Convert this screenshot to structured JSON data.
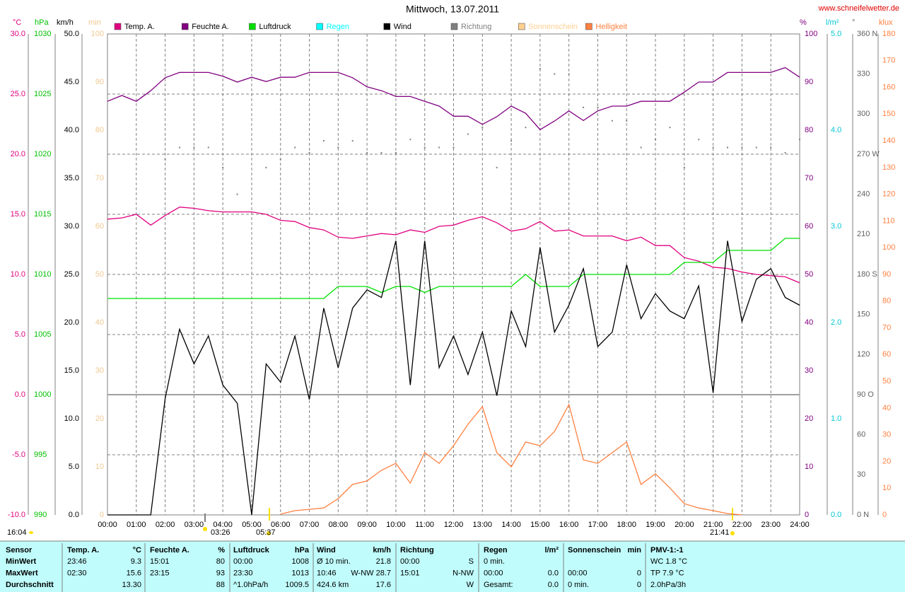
{
  "chart_data": {
    "type": "line",
    "title": "Mittwoch, 13.07.2011",
    "source": "www.schneifelwetter.de",
    "annotations": [
      "16:04",
      "03:26",
      "05:37",
      "21:41"
    ],
    "xlim": [
      0,
      24
    ],
    "xticks": [
      {
        "value": 0,
        "label": "00:00"
      },
      {
        "value": 1,
        "label": "01:00"
      },
      {
        "value": 2,
        "label": "02:00"
      },
      {
        "value": 3,
        "label": "03:00"
      },
      {
        "value": 4,
        "label": "04:00"
      },
      {
        "value": 5,
        "label": "05:00"
      },
      {
        "value": 6,
        "label": "06:00"
      },
      {
        "value": 7,
        "label": "07:00"
      },
      {
        "value": 8,
        "label": "08:00"
      },
      {
        "value": 9,
        "label": "09:00"
      },
      {
        "value": 10,
        "label": "10:00"
      },
      {
        "value": 11,
        "label": "11:00"
      },
      {
        "value": 12,
        "label": "12:00"
      },
      {
        "value": 13,
        "label": "13:00"
      },
      {
        "value": 14,
        "label": "14:00"
      },
      {
        "value": 15,
        "label": "15:00"
      },
      {
        "value": 16,
        "label": "16:00"
      },
      {
        "value": 17,
        "label": "17:00"
      },
      {
        "value": 18,
        "label": "18:00"
      },
      {
        "value": 19,
        "label": "19:00"
      },
      {
        "value": 20,
        "label": "20:00"
      },
      {
        "value": 21,
        "label": "21:00"
      },
      {
        "value": 22,
        "label": "22:00"
      },
      {
        "value": 23,
        "label": "23:00"
      },
      {
        "value": 24,
        "label": "24:00"
      }
    ],
    "grid": true,
    "axes": {
      "temp": {
        "label": "°C",
        "lim": [
          -10,
          30
        ],
        "ticks": [
          {
            "value": -10,
            "label": "-10.0"
          },
          {
            "value": -5,
            "label": "-5.0"
          },
          {
            "value": 0,
            "label": "0.0"
          },
          {
            "value": 5,
            "label": "5.0"
          },
          {
            "value": 10,
            "label": "10.0"
          },
          {
            "value": 15,
            "label": "15.0"
          },
          {
            "value": 20,
            "label": "20.0"
          },
          {
            "value": 25,
            "label": "25.0"
          },
          {
            "value": 30,
            "label": "30.0"
          }
        ]
      },
      "hpa": {
        "label": "hPa",
        "lim": [
          990,
          1030
        ],
        "ticks": [
          990,
          995,
          1000,
          1005,
          1010,
          1015,
          1020,
          1025,
          1030
        ]
      },
      "wind": {
        "label": "km/h",
        "lim": [
          0,
          50
        ],
        "ticks": [
          {
            "value": 0,
            "label": "0.0"
          },
          {
            "value": 5,
            "label": "5.0"
          },
          {
            "value": 10,
            "label": "10.0"
          },
          {
            "value": 15,
            "label": "15.0"
          },
          {
            "value": 20,
            "label": "20.0"
          },
          {
            "value": 25,
            "label": "25.0"
          },
          {
            "value": 30,
            "label": "30.0"
          },
          {
            "value": 35,
            "label": "35.0"
          },
          {
            "value": 40,
            "label": "40.0"
          },
          {
            "value": 45,
            "label": "45.0"
          },
          {
            "value": 50,
            "label": "50.0"
          }
        ]
      },
      "sun": {
        "label": "min",
        "lim": [
          0,
          100
        ],
        "ticks": [
          0,
          10,
          20,
          30,
          40,
          50,
          60,
          70,
          80,
          90,
          100
        ]
      },
      "hum": {
        "label": "%",
        "lim": [
          0,
          100
        ],
        "ticks": [
          0,
          10,
          20,
          30,
          40,
          50,
          60,
          70,
          80,
          90,
          100
        ]
      },
      "rain": {
        "label": "l/m²",
        "lim": [
          0,
          5
        ],
        "ticks": [
          {
            "value": 0,
            "label": "0.0"
          },
          {
            "value": 1,
            "label": "1.0"
          },
          {
            "value": 2,
            "label": "2.0"
          },
          {
            "value": 3,
            "label": "3.0"
          },
          {
            "value": 4,
            "label": "4.0"
          },
          {
            "value": 5,
            "label": "5.0"
          }
        ]
      },
      "dir": {
        "label": "°",
        "lim": [
          0,
          360
        ],
        "ticks": [
          {
            "value": 0,
            "label": "0   N"
          },
          30,
          60,
          {
            "value": 90,
            "label": "90  O"
          },
          120,
          150,
          {
            "value": 180,
            "label": "180 S"
          },
          210,
          240,
          {
            "value": 270,
            "label": "270 W"
          },
          300,
          330,
          {
            "value": 360,
            "label": "360 N"
          }
        ]
      },
      "lux": {
        "label": "klux",
        "lim": [
          0,
          180
        ],
        "ticks": [
          0,
          10,
          20,
          30,
          40,
          50,
          60,
          70,
          80,
          90,
          100,
          110,
          120,
          130,
          140,
          150,
          160,
          170,
          180
        ]
      }
    },
    "x": [
      0,
      0.5,
      1,
      1.5,
      2,
      2.5,
      3,
      3.5,
      4,
      4.5,
      5,
      5.5,
      6,
      6.5,
      7,
      7.5,
      8,
      8.5,
      9,
      9.5,
      10,
      10.5,
      11,
      11.5,
      12,
      12.5,
      13,
      13.5,
      14,
      14.5,
      15,
      15.5,
      16,
      16.5,
      17,
      17.5,
      18,
      18.5,
      19,
      19.5,
      20,
      20.5,
      21,
      21.5,
      22,
      22.5,
      23,
      23.5,
      24
    ],
    "series": [
      {
        "name": "Temp. A.",
        "color": "#e0007f",
        "axis": "temp",
        "values": [
          14.6,
          14.7,
          15.0,
          14.1,
          14.9,
          15.6,
          15.5,
          15.3,
          15.2,
          15.2,
          15.2,
          15.0,
          14.5,
          14.4,
          13.9,
          13.7,
          13.1,
          13.0,
          13.2,
          13.4,
          13.3,
          13.7,
          13.5,
          14.0,
          14.1,
          14.5,
          14.8,
          14.3,
          13.6,
          13.8,
          14.4,
          13.6,
          13.7,
          13.2,
          13.2,
          13.2,
          12.8,
          13.1,
          12.4,
          12.4,
          11.4,
          11.1,
          10.6,
          10.5,
          10.2,
          10.0,
          9.9,
          9.8,
          9.3
        ]
      },
      {
        "name": "Feuchte A.",
        "color": "#800080",
        "axis": "hum",
        "values": [
          86,
          87.2,
          86,
          88.2,
          90.9,
          92,
          92,
          92,
          91.2,
          90,
          91,
          90.1,
          91,
          91,
          92,
          92,
          92,
          90.9,
          89,
          88.2,
          87,
          87,
          86,
          85,
          82.9,
          82.9,
          81.2,
          82.8,
          85,
          83.5,
          80.1,
          81.9,
          84,
          82,
          84,
          85,
          85,
          86,
          86,
          86,
          87.9,
          90,
          90,
          92,
          92,
          92,
          92,
          93,
          91
        ]
      },
      {
        "name": "Luftdruck",
        "color": "#00e000",
        "axis": "hpa",
        "values": [
          1008,
          1008,
          1008,
          1008,
          1008,
          1008,
          1008,
          1008,
          1008,
          1008,
          1008,
          1008,
          1008,
          1008,
          1008,
          1008,
          1009,
          1009,
          1009,
          1008.5,
          1009,
          1009,
          1008.5,
          1009,
          1009,
          1009,
          1009,
          1009,
          1009,
          1010,
          1009,
          1009,
          1009,
          1010,
          1010,
          1010,
          1010,
          1010,
          1010,
          1010,
          1011,
          1011,
          1011,
          1012,
          1012,
          1012,
          1012,
          1013,
          1013
        ]
      },
      {
        "name": "Regen",
        "color": "#00ffff",
        "axis": "rain"
      },
      {
        "name": "Wind",
        "color": "#000000",
        "axis": "wind",
        "values": [
          0,
          0,
          0,
          0,
          12.1,
          19.3,
          15.7,
          18.6,
          13.5,
          11.6,
          0,
          15.7,
          13.8,
          18.6,
          12,
          21.5,
          15.3,
          21.5,
          23.4,
          22.6,
          28.5,
          13.5,
          28.5,
          15.3,
          18.6,
          14.6,
          19,
          12.4,
          21.2,
          17.5,
          27.8,
          19,
          21.8,
          25.6,
          17.5,
          19,
          26,
          20.4,
          23,
          21.2,
          20.4,
          23.8,
          12.7,
          28.5,
          20.1,
          24.5,
          25.6,
          22.6,
          21.8
        ]
      },
      {
        "name": "Richtung",
        "color": "#808080",
        "axis": "dir",
        "type": "scatter",
        "values": [
          null,
          null,
          null,
          null,
          266,
          275,
          275,
          275,
          260,
          240,
          null,
          260,
          266,
          275,
          271,
          280,
          275,
          280,
          271,
          271,
          271,
          281,
          275,
          275,
          275,
          285,
          290,
          260,
          280,
          290,
          334,
          330,
          330,
          305,
          305,
          295,
          295,
          275,
          281,
          290,
          260,
          281,
          275,
          275,
          275,
          275,
          275,
          271,
          281
        ]
      },
      {
        "name": "Sonnenschein",
        "color": "#ffd090",
        "axis": "sun"
      },
      {
        "name": "Helligkeit",
        "color": "#ff8040",
        "axis": "lux",
        "values": [
          null,
          null,
          null,
          null,
          null,
          null,
          null,
          null,
          null,
          null,
          null,
          null,
          0.3,
          1.6,
          2.1,
          2.6,
          6.1,
          11.4,
          12.7,
          16.7,
          19.3,
          11.9,
          23.3,
          19.3,
          25.9,
          33.9,
          40.5,
          23.3,
          18,
          27.3,
          25.9,
          31.2,
          41.3,
          20.6,
          19.3,
          23.3,
          27.3,
          11.4,
          15.4,
          10.1,
          4.2,
          2.6,
          1.6,
          0.5,
          0,
          null,
          null,
          null,
          null
        ]
      }
    ]
  },
  "table": {
    "header": [
      {
        "left": "Sensor"
      },
      {
        "left": "Temp. A.",
        "right": "°C"
      },
      {
        "left": "Feuchte A.",
        "right": "%"
      },
      {
        "left": "Luftdruck",
        "right": "hPa"
      },
      {
        "left": "Wind",
        "right": "km/h"
      },
      {
        "left": "Richtung"
      },
      {
        "left": "Regen",
        "right": "l/m²"
      },
      {
        "left": "Sonnenschein",
        "right": "min"
      },
      {
        "left": "PMV-1:-1"
      }
    ],
    "rows": [
      [
        {
          "left": "MinWert"
        },
        {
          "left": "23:46",
          "right": "9.3"
        },
        {
          "left": "15:01",
          "right": "80"
        },
        {
          "left": "00:00",
          "right": "1008"
        },
        {
          "left": "Ø 10 min.",
          "right": "21.8"
        },
        {
          "left": "00:00",
          "right": "S"
        },
        {
          "left": "0 min."
        },
        {},
        {
          "left": "WC 1.8 °C"
        }
      ],
      [
        {
          "left": "MaxWert"
        },
        {
          "left": "02:30",
          "right": "15.6"
        },
        {
          "left": "23:15",
          "right": "93"
        },
        {
          "left": "23:30",
          "right": "1013"
        },
        {
          "left": "10:46",
          "right": "W-NW 28.7"
        },
        {
          "left": "15:01",
          "right": "N-NW"
        },
        {
          "left": "00:00",
          "right": "0.0"
        },
        {
          "left": "00:00",
          "right": "0"
        },
        {
          "left": "TP 7.9 °C"
        }
      ],
      [
        {
          "left": "Durchschnitt"
        },
        {
          "right": "13.30"
        },
        {
          "right": "88"
        },
        {
          "left": "^1.0hPa/h",
          "right": "1009.5"
        },
        {
          "left": "424.6 km",
          "right": "17.6"
        },
        {
          "right": "W"
        },
        {
          "left": "Gesamt:",
          "right": "0.0"
        },
        {
          "left": "0 min.",
          "right": "0"
        },
        {
          "left": "2.0hPa/3h"
        }
      ]
    ]
  }
}
